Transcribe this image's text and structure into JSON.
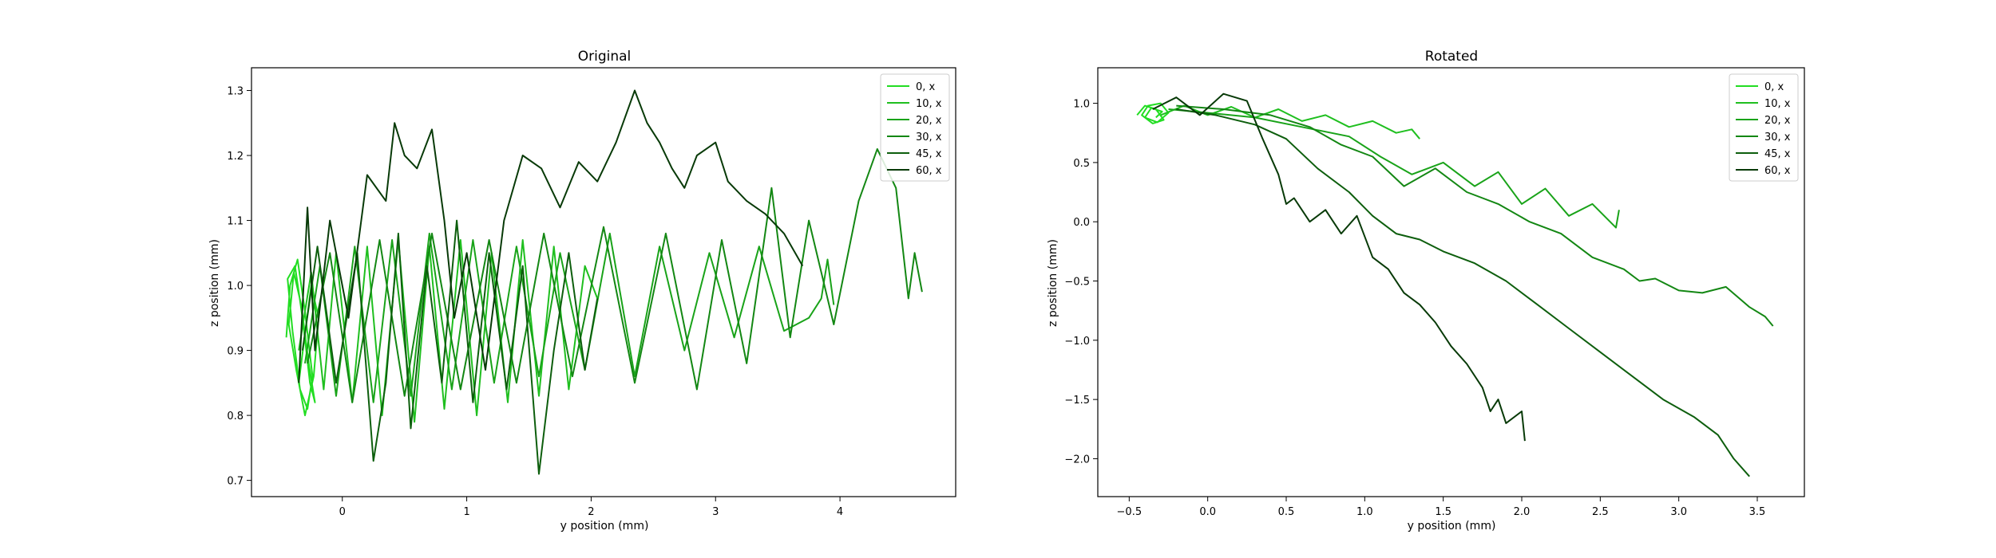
{
  "chart_data": [
    {
      "type": "line",
      "title": "Original",
      "xlabel": "y position (mm)",
      "ylabel": "z position (mm)",
      "xlim": [
        -0.73,
        4.93
      ],
      "ylim": [
        0.675,
        1.335
      ],
      "xticks": [
        0,
        1,
        2,
        3,
        4
      ],
      "yticks": [
        0.7,
        0.8,
        0.9,
        1.0,
        1.1,
        1.2,
        1.3
      ],
      "xtick_labels": [
        "0",
        "1",
        "2",
        "3",
        "4"
      ],
      "ytick_labels": [
        "0.7",
        "0.8",
        "0.9",
        "1.0",
        "1.1",
        "1.2",
        "1.3"
      ],
      "grid": false,
      "legend_position": "upper right",
      "series": [
        {
          "name": "0, x",
          "color": "#22dd22",
          "x": [
            -0.45,
            -0.42,
            -0.36,
            -0.3,
            -0.24,
            -0.28,
            -0.34,
            -0.4,
            -0.44,
            -0.38,
            -0.32,
            -0.26,
            -0.22,
            -0.27,
            -0.33,
            -0.39,
            -0.43,
            -0.37,
            -0.3,
            -0.23,
            -0.19,
            -0.25,
            -0.31,
            -0.35
          ],
          "y": [
            0.92,
            1.0,
            1.04,
            0.96,
            0.86,
            0.81,
            0.84,
            0.93,
            1.01,
            1.03,
            0.95,
            0.85,
            0.82,
            0.88,
            0.97,
            1.02,
            0.94,
            0.87,
            0.8,
            0.86,
            0.95,
            1.0,
            0.91,
            0.85
          ]
        },
        {
          "name": "10, x",
          "color": "#1fbf1f",
          "x": [
            -0.35,
            -0.25,
            -0.15,
            -0.05,
            0.08,
            0.2,
            0.32,
            0.45,
            0.58,
            0.7,
            0.82,
            0.95,
            1.08,
            1.2,
            1.33,
            1.45,
            1.58,
            1.7,
            1.82,
            1.95,
            2.05
          ],
          "y": [
            0.9,
            1.02,
            0.84,
            1.05,
            0.82,
            1.06,
            0.8,
            1.07,
            0.79,
            1.06,
            0.81,
            1.07,
            0.8,
            1.05,
            0.82,
            1.07,
            0.83,
            1.06,
            0.84,
            1.03,
            0.98
          ]
        },
        {
          "name": "20, x",
          "color": "#19a319",
          "x": [
            -0.3,
            -0.18,
            -0.05,
            0.1,
            0.25,
            0.4,
            0.55,
            0.7,
            0.88,
            1.05,
            1.22,
            1.4,
            1.58,
            1.75,
            1.95,
            2.15,
            2.35,
            2.55,
            2.75,
            2.95,
            3.15,
            3.35,
            3.55,
            3.75,
            3.85,
            3.9,
            3.95
          ],
          "y": [
            0.88,
            1.03,
            0.83,
            1.06,
            0.82,
            1.07,
            0.83,
            1.08,
            0.84,
            1.07,
            0.85,
            1.06,
            0.86,
            1.05,
            0.87,
            1.08,
            0.86,
            1.06,
            0.9,
            1.05,
            0.92,
            1.06,
            0.93,
            0.95,
            0.98,
            1.04,
            0.97
          ]
        },
        {
          "name": "30, x",
          "color": "#138713",
          "x": [
            -0.28,
            -0.1,
            0.08,
            0.3,
            0.5,
            0.72,
            0.95,
            1.18,
            1.4,
            1.62,
            1.85,
            2.1,
            2.35,
            2.6,
            2.85,
            3.05,
            3.25,
            3.45,
            3.6,
            3.75,
            3.95,
            4.15,
            4.3,
            4.45,
            4.55,
            4.6,
            4.66
          ],
          "y": [
            0.88,
            1.05,
            0.82,
            1.07,
            0.83,
            1.08,
            0.84,
            1.07,
            0.85,
            1.08,
            0.86,
            1.09,
            0.85,
            1.08,
            0.84,
            1.07,
            0.88,
            1.15,
            0.92,
            1.1,
            0.94,
            1.13,
            1.21,
            1.15,
            0.98,
            1.05,
            0.99
          ]
        },
        {
          "name": "45, x",
          "color": "#0d5e0d",
          "x": [
            -0.32,
            -0.2,
            -0.05,
            0.12,
            0.25,
            0.35,
            0.45,
            0.55,
            0.68,
            0.8,
            0.92,
            1.05,
            1.18,
            1.32,
            1.45,
            1.58,
            1.7,
            1.82,
            1.95,
            2.05
          ],
          "y": [
            0.9,
            1.06,
            0.85,
            1.05,
            0.73,
            0.85,
            1.08,
            0.78,
            1.03,
            0.85,
            1.1,
            0.82,
            1.05,
            0.84,
            1.03,
            0.71,
            0.9,
            1.05,
            0.87,
            0.98
          ]
        },
        {
          "name": "60, x",
          "color": "#083a08",
          "x": [
            -0.35,
            -0.28,
            -0.22,
            -0.1,
            0.05,
            0.2,
            0.35,
            0.42,
            0.5,
            0.6,
            0.72,
            0.82,
            0.9,
            1.0,
            1.15,
            1.3,
            1.45,
            1.6,
            1.75,
            1.9,
            2.05,
            2.2,
            2.35,
            2.45,
            2.55,
            2.65,
            2.75,
            2.85,
            3.0,
            3.1,
            3.25,
            3.4,
            3.55,
            3.7
          ],
          "y": [
            0.85,
            1.12,
            0.9,
            1.1,
            0.95,
            1.17,
            1.13,
            1.25,
            1.2,
            1.18,
            1.24,
            1.1,
            0.95,
            1.05,
            0.87,
            1.1,
            1.2,
            1.18,
            1.12,
            1.19,
            1.16,
            1.22,
            1.3,
            1.25,
            1.22,
            1.18,
            1.15,
            1.2,
            1.22,
            1.16,
            1.13,
            1.11,
            1.08,
            1.03
          ]
        }
      ]
    },
    {
      "type": "line",
      "title": "Rotated",
      "xlabel": "y position (mm)",
      "ylabel": "z position (mm)",
      "xlim": [
        -0.7,
        3.8
      ],
      "ylim": [
        -2.32,
        1.3
      ],
      "xticks": [
        -0.5,
        0.0,
        0.5,
        1.0,
        1.5,
        2.0,
        2.5,
        3.0,
        3.5
      ],
      "yticks": [
        -2.0,
        -1.5,
        -1.0,
        -0.5,
        0.0,
        0.5,
        1.0
      ],
      "xtick_labels": [
        "−0.5",
        "0.0",
        "0.5",
        "1.0",
        "1.5",
        "2.0",
        "2.5",
        "3.0",
        "3.5"
      ],
      "ytick_labels": [
        "−2.0",
        "−1.5",
        "−1.0",
        "−0.5",
        "0.0",
        "0.5",
        "1.0"
      ],
      "grid": false,
      "legend_position": "upper right",
      "series": [
        {
          "name": "0, x",
          "color": "#22dd22",
          "x": [
            -0.45,
            -0.4,
            -0.33,
            -0.28,
            -0.35,
            -0.42,
            -0.38,
            -0.3,
            -0.25,
            -0.32,
            -0.4,
            -0.36,
            -0.29,
            -0.33
          ],
          "y": [
            0.9,
            0.98,
            0.95,
            0.86,
            0.83,
            0.9,
            0.98,
            1.0,
            0.92,
            0.84,
            0.88,
            0.96,
            0.93,
            0.88
          ]
        },
        {
          "name": "10, x",
          "color": "#1fbf1f",
          "x": [
            -0.3,
            -0.15,
            0.0,
            0.15,
            0.3,
            0.45,
            0.6,
            0.75,
            0.9,
            1.05,
            1.2,
            1.3,
            1.35
          ],
          "y": [
            0.9,
            0.98,
            0.9,
            0.97,
            0.88,
            0.95,
            0.85,
            0.9,
            0.8,
            0.85,
            0.75,
            0.78,
            0.7
          ]
        },
        {
          "name": "20, x",
          "color": "#19a319",
          "x": [
            -0.25,
            0.0,
            0.3,
            0.6,
            0.9,
            1.1,
            1.3,
            1.5,
            1.7,
            1.85,
            2.0,
            2.15,
            2.3,
            2.45,
            2.6,
            2.62
          ],
          "y": [
            0.95,
            0.92,
            0.88,
            0.8,
            0.72,
            0.55,
            0.4,
            0.5,
            0.3,
            0.42,
            0.15,
            0.28,
            0.05,
            0.15,
            -0.05,
            0.1
          ]
        },
        {
          "name": "30, x",
          "color": "#138713",
          "x": [
            -0.2,
            0.1,
            0.4,
            0.65,
            0.85,
            1.05,
            1.25,
            1.45,
            1.65,
            1.85,
            2.05,
            2.25,
            2.45,
            2.65,
            2.75,
            2.85,
            3.0,
            3.15,
            3.3,
            3.45,
            3.55,
            3.6
          ],
          "y": [
            0.98,
            0.95,
            0.9,
            0.8,
            0.65,
            0.55,
            0.3,
            0.45,
            0.25,
            0.15,
            0.0,
            -0.1,
            -0.3,
            -0.4,
            -0.5,
            -0.48,
            -0.58,
            -0.6,
            -0.55,
            -0.72,
            -0.8,
            -0.88
          ]
        },
        {
          "name": "45, x",
          "color": "#0d5e0d",
          "x": [
            -0.2,
            0.05,
            0.3,
            0.5,
            0.7,
            0.9,
            1.05,
            1.2,
            1.35,
            1.5,
            1.7,
            1.9,
            2.1,
            2.3,
            2.5,
            2.7,
            2.9,
            3.1,
            3.25,
            3.35,
            3.45
          ],
          "y": [
            0.95,
            0.9,
            0.82,
            0.7,
            0.45,
            0.25,
            0.05,
            -0.1,
            -0.15,
            -0.25,
            -0.35,
            -0.5,
            -0.7,
            -0.9,
            -1.1,
            -1.3,
            -1.5,
            -1.65,
            -1.8,
            -2.0,
            -2.15
          ]
        },
        {
          "name": "60, x",
          "color": "#083a08",
          "x": [
            -0.35,
            -0.2,
            -0.05,
            0.1,
            0.25,
            0.35,
            0.45,
            0.5,
            0.55,
            0.65,
            0.75,
            0.85,
            0.95,
            1.05,
            1.15,
            1.25,
            1.35,
            1.45,
            1.55,
            1.65,
            1.75,
            1.8,
            1.85,
            1.9,
            2.0,
            2.02
          ],
          "y": [
            0.95,
            1.05,
            0.9,
            1.08,
            1.02,
            0.7,
            0.4,
            0.15,
            0.2,
            0.0,
            0.1,
            -0.1,
            0.05,
            -0.3,
            -0.4,
            -0.6,
            -0.7,
            -0.85,
            -1.05,
            -1.2,
            -1.4,
            -1.6,
            -1.5,
            -1.7,
            -1.6,
            -1.85
          ]
        }
      ]
    }
  ]
}
